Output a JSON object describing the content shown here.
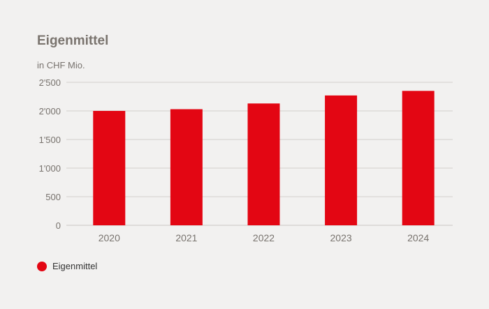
{
  "chart_data": {
    "type": "bar",
    "title": "Eigenmittel",
    "subtitle": "in CHF Mio.",
    "categories": [
      "2020",
      "2021",
      "2022",
      "2023",
      "2024"
    ],
    "series": [
      {
        "name": "Eigenmittel",
        "values": [
          2000,
          2030,
          2130,
          2270,
          2350
        ]
      }
    ],
    "ylim": [
      0,
      2500
    ],
    "yticks": [
      0,
      500,
      1000,
      1500,
      2000,
      2500
    ],
    "ytick_labels": [
      "0",
      "500",
      "1'000",
      "1'500",
      "2'000",
      "2'500"
    ],
    "grid": true,
    "legend_position": "bottom-left",
    "colors": {
      "bar": "#e30613",
      "grid": "#d3d0cd",
      "text": "#77726d"
    }
  }
}
